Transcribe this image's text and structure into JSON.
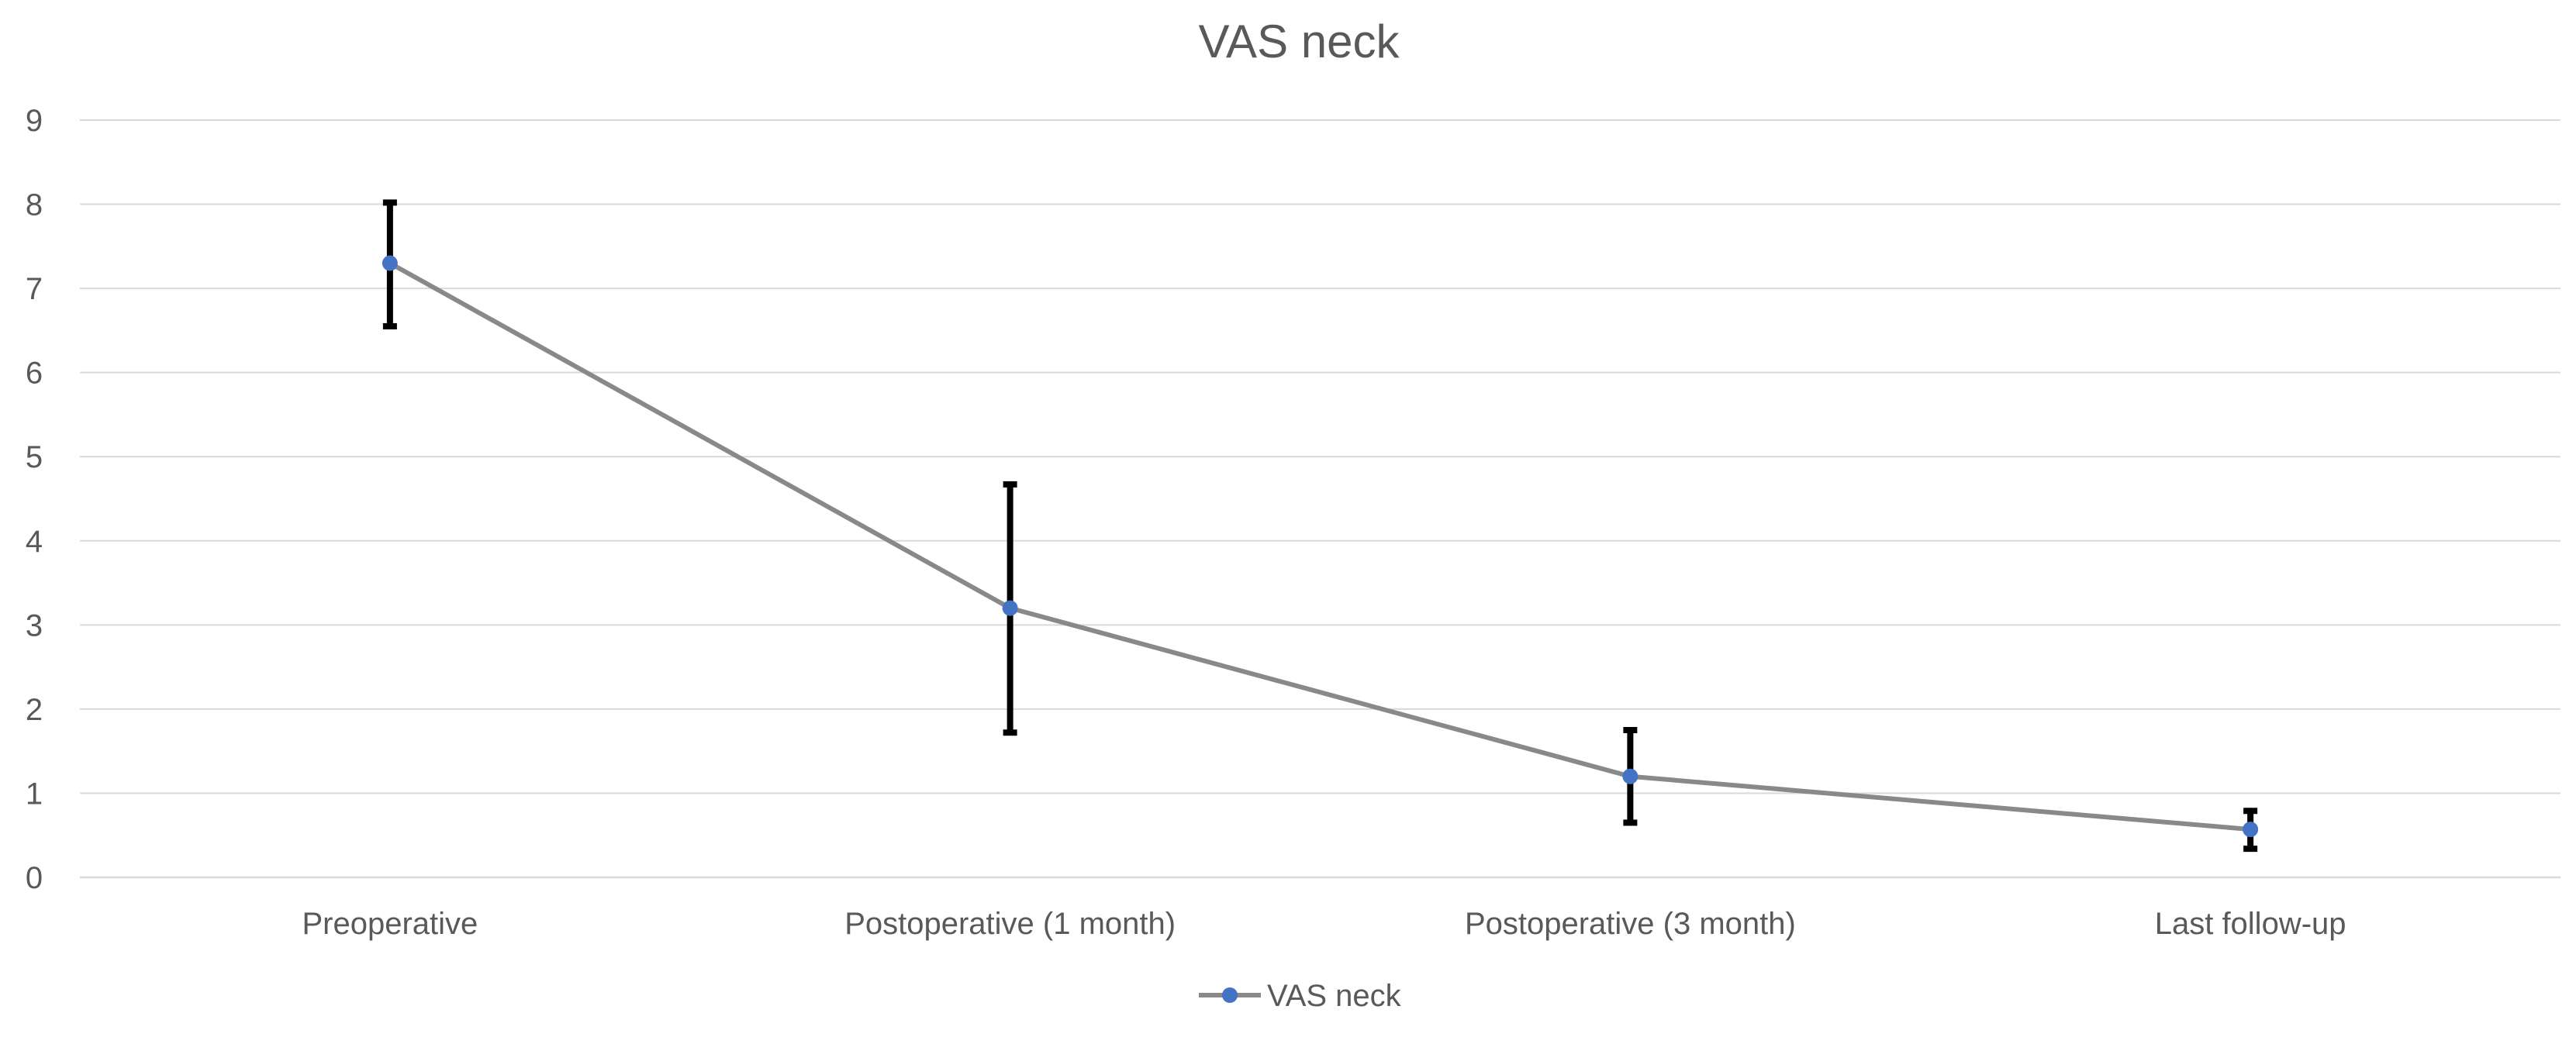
{
  "chart_data": {
    "type": "line",
    "title": "VAS neck",
    "xlabel": "",
    "ylabel": "",
    "categories": [
      "Preoperative",
      "Postoperative (1 month)",
      "Postoperative (3 month)",
      "Last follow-up"
    ],
    "series": [
      {
        "name": "VAS neck",
        "values": [
          7.3,
          3.2,
          1.2,
          0.57
        ],
        "error_lower": [
          6.55,
          1.72,
          0.65,
          0.34
        ],
        "error_upper": [
          8.02,
          4.67,
          1.75,
          0.79
        ]
      }
    ],
    "ylim": [
      0,
      9
    ],
    "yticks": [
      0,
      1,
      2,
      3,
      4,
      5,
      6,
      7,
      8,
      9
    ],
    "grid": true,
    "legend": "bottom-center",
    "colors": {
      "line": "#898989",
      "marker": "#4472c4",
      "error_bar": "#000000",
      "grid": "#d9d9d9",
      "text": "#595959"
    }
  }
}
